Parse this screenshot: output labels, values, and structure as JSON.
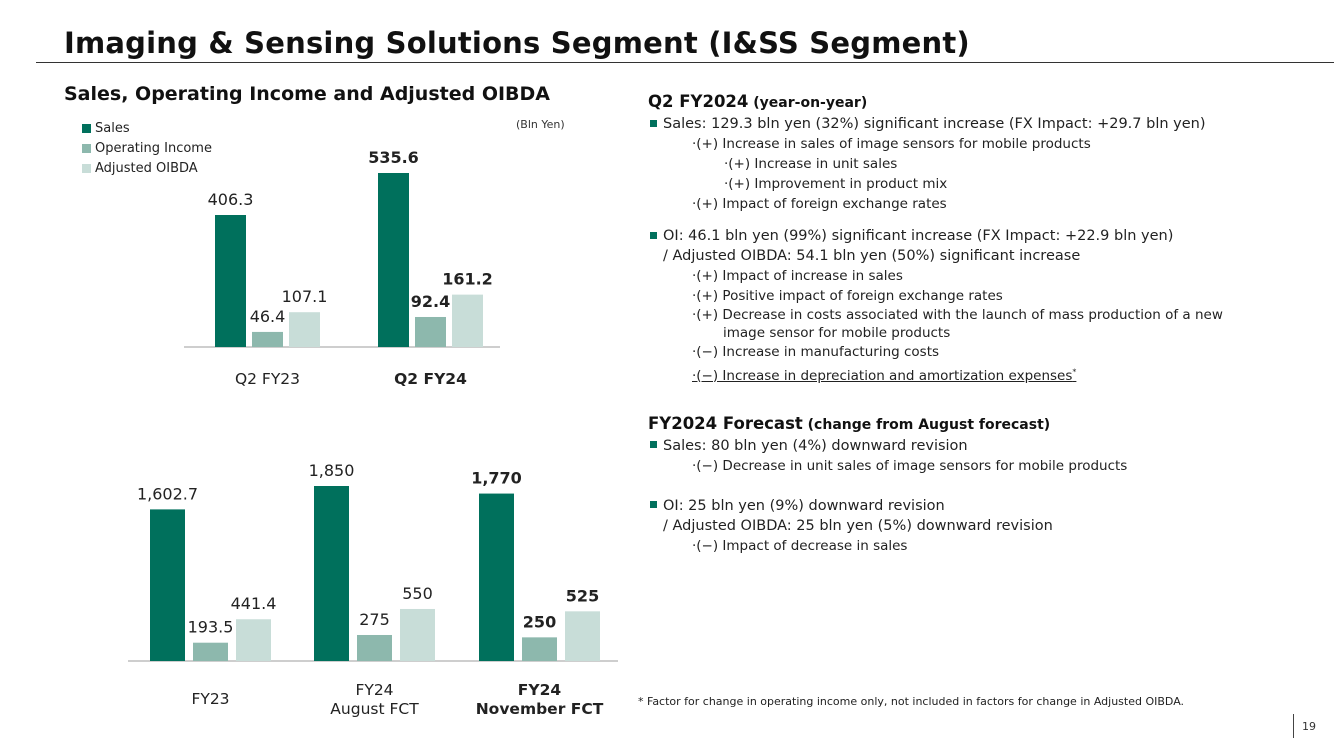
{
  "header": {
    "title": "Imaging & Sensing Solutions Segment (I&SS Segment)"
  },
  "colors": {
    "sales": "#00705c",
    "oi": "#8db8ad",
    "oibda": "#c8ddd8",
    "bullet": "#00705c"
  },
  "chart_data": [
    {
      "type": "bar",
      "title": "Sales, Operating Income and Adjusted OIBDA",
      "unit": "(Bln Yen)",
      "legend": [
        "Sales",
        "Operating Income",
        "Adjusted OIBDA"
      ],
      "legend_position": "top-left",
      "categories": [
        {
          "lines": [
            "Q2 FY23"
          ],
          "bold": false
        },
        {
          "lines": [
            "Q2 FY24"
          ],
          "bold": true
        }
      ],
      "series": [
        {
          "name": "Sales",
          "values": [
            406.3,
            535.6
          ],
          "labels": [
            "406.3",
            "535.6"
          ]
        },
        {
          "name": "Operating Income",
          "values": [
            46.4,
            92.4
          ],
          "labels": [
            "46.4",
            "92.4"
          ]
        },
        {
          "name": "Adjusted OIBDA",
          "values": [
            107.1,
            161.2
          ],
          "labels": [
            "107.1",
            "161.2"
          ]
        }
      ],
      "ylim": [
        0,
        600
      ]
    },
    {
      "type": "bar",
      "title": "",
      "categories": [
        {
          "lines": [
            "FY23"
          ],
          "bold": false
        },
        {
          "lines": [
            "FY24",
            "August FCT"
          ],
          "bold": false
        },
        {
          "lines": [
            "FY24",
            "November FCT"
          ],
          "bold": true
        }
      ],
      "series": [
        {
          "name": "Sales",
          "values": [
            1602.7,
            1850,
            1770
          ],
          "labels": [
            "1,602.7",
            "1,850",
            "1,770"
          ]
        },
        {
          "name": "Operating Income",
          "values": [
            193.5,
            275,
            250
          ],
          "labels": [
            "193.5",
            "275",
            "250"
          ]
        },
        {
          "name": "Adjusted OIBDA",
          "values": [
            441.4,
            550,
            525
          ],
          "labels": [
            "441.4",
            "550",
            "525"
          ]
        }
      ],
      "ylim": [
        0,
        2000
      ]
    }
  ],
  "q2": {
    "heading": "Q2 FY2024",
    "heading_sub": " (year-on-year)",
    "sales": "Sales: 129.3 bln yen (32%) significant increase (FX Impact: +29.7 bln yen)",
    "sales_f1": "·(+) Increase in sales of image sensors for mobile products",
    "sales_f1a": "·(+) Increase in unit sales",
    "sales_f1b": "·(+) Improvement in product mix",
    "sales_f2": "·(+) Impact of foreign exchange rates",
    "oi": "OI: 46.1 bln yen (99%) significant increase (FX Impact: +22.9 bln yen)",
    "oibda": "/ Adjusted OIBDA: 54.1 bln yen (50%) significant increase",
    "oi_f1": "·(+) Impact of increase in sales",
    "oi_f2": "·(+) Positive impact of foreign exchange rates",
    "oi_f3": "·(+) Decrease in costs associated with the launch of mass production of a new",
    "oi_f3b": "image sensor for mobile products",
    "oi_f4": "·(−) Increase in manufacturing costs",
    "oi_f5": "·(−) Increase in depreciation and amortization expenses",
    "oi_f5_mark": "*"
  },
  "fy": {
    "heading": "FY2024 Forecast",
    "heading_sub": " (change from August forecast)",
    "sales": "Sales: 80 bln yen (4%) downward revision",
    "sales_f1": "·(−) Decrease in unit sales of image sensors for mobile products",
    "oi": "OI: 25 bln yen (9%) downward revision",
    "oibda": "/ Adjusted OIBDA: 25 bln yen (5%) downward revision",
    "oi_f1": "·(−) Impact of decrease in sales"
  },
  "footnote": "* Factor for change in operating income only, not included in factors for change in Adjusted OIBDA.",
  "page_number": "19"
}
